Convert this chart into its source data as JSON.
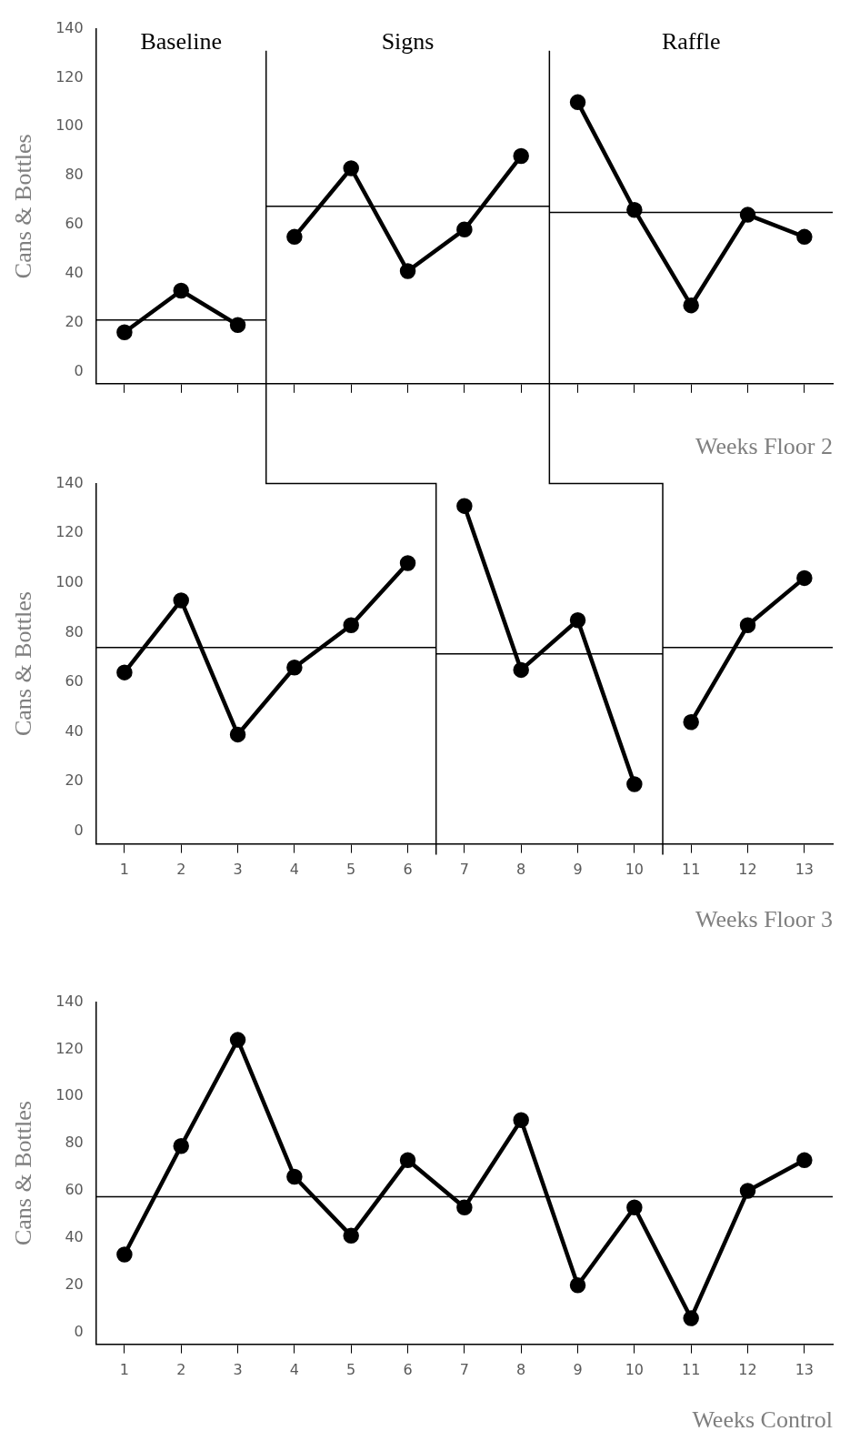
{
  "chart_data": [
    {
      "type": "line",
      "ylabel": "Cans & Bottles",
      "xlabel": "Weeks Floor 2",
      "xlim": [
        0.5,
        13.5
      ],
      "xticks": [
        1,
        2,
        3,
        4,
        5,
        6,
        7,
        8,
        9,
        10,
        11,
        12,
        13
      ],
      "ylim": [
        -5,
        140
      ],
      "yticks": [
        0,
        20,
        40,
        60,
        80,
        100,
        120,
        140
      ],
      "tick_labels": "y",
      "grid": false,
      "legend": false,
      "marker": "circle",
      "line_style": "solid",
      "series": [
        {
          "color": "#000000",
          "x": [
            1,
            2,
            3
          ],
          "values": [
            16,
            33,
            19
          ]
        },
        {
          "color": "#000000",
          "x": [
            4,
            5,
            6,
            7,
            8
          ],
          "values": [
            55,
            83,
            41,
            58,
            88
          ]
        },
        {
          "color": "#000000",
          "x": [
            9,
            10,
            11,
            12,
            13
          ],
          "values": [
            110,
            66,
            27,
            64,
            55
          ]
        },
        {
          "type": "line",
          "marker": "none",
          "color": "#000000",
          "x": [
            0.5,
            3.5
          ],
          "values": [
            21,
            21
          ]
        },
        {
          "type": "line",
          "marker": "none",
          "color": "#000000",
          "x": [
            3.5,
            8.5
          ],
          "values": [
            67.5,
            67.5
          ]
        },
        {
          "type": "line",
          "marker": "none",
          "color": "#000000",
          "x": [
            8.5,
            13.5
          ],
          "values": [
            65,
            65
          ]
        }
      ],
      "ref_lines": [
        {
          "axis": "x",
          "value": 3.5
        },
        {
          "axis": "x",
          "value": 8.5
        }
      ],
      "annotations": [
        "Baseline",
        "Signs",
        "Raffle"
      ]
    },
    {
      "type": "line",
      "ylabel": "Cans & Bottles",
      "xlabel": "Weeks Floor 3",
      "xlim": [
        0.5,
        13.5
      ],
      "xticks": [
        1,
        2,
        3,
        4,
        5,
        6,
        7,
        8,
        9,
        10,
        11,
        12,
        13
      ],
      "ylim": [
        -5,
        140
      ],
      "yticks": [
        0,
        20,
        40,
        60,
        80,
        100,
        120,
        140
      ],
      "grid": false,
      "legend": false,
      "marker": "circle",
      "line_style": "solid",
      "series": [
        {
          "color": "#000000",
          "x": [
            1,
            2,
            3,
            4,
            5,
            6
          ],
          "values": [
            64,
            93,
            39,
            66,
            83,
            108
          ]
        },
        {
          "color": "#000000",
          "x": [
            7,
            8,
            9,
            10
          ],
          "values": [
            131,
            65,
            85,
            19
          ]
        },
        {
          "color": "#000000",
          "x": [
            11,
            12,
            13
          ],
          "values": [
            44,
            83,
            102
          ]
        },
        {
          "type": "line",
          "marker": "none",
          "color": "#000000",
          "x": [
            0.5,
            6.5
          ],
          "values": [
            74,
            74
          ]
        },
        {
          "type": "line",
          "marker": "none",
          "color": "#000000",
          "x": [
            6.5,
            10.5
          ],
          "values": [
            71.5,
            71.5
          ]
        },
        {
          "type": "line",
          "marker": "none",
          "color": "#000000",
          "x": [
            10.5,
            13.5
          ],
          "values": [
            74,
            74
          ]
        }
      ],
      "ref_lines": [
        {
          "axis": "x",
          "value": 6.5
        },
        {
          "axis": "x",
          "value": 10.5
        }
      ]
    },
    {
      "type": "line",
      "ylabel": "Cans & Bottles",
      "xlabel": "Weeks Control",
      "xlim": [
        0.5,
        13.5
      ],
      "xticks": [
        1,
        2,
        3,
        4,
        5,
        6,
        7,
        8,
        9,
        10,
        11,
        12,
        13
      ],
      "ylim": [
        -5,
        140
      ],
      "yticks": [
        0,
        20,
        40,
        60,
        80,
        100,
        120,
        140
      ],
      "grid": false,
      "legend": false,
      "marker": "circle",
      "line_style": "solid",
      "series": [
        {
          "color": "#000000",
          "x": [
            1,
            2,
            3,
            4,
            5,
            6,
            7,
            8,
            9,
            10,
            11,
            12,
            13
          ],
          "values": [
            33,
            79,
            124,
            66,
            41,
            73,
            53,
            90,
            20,
            53,
            6,
            60,
            73
          ]
        },
        {
          "type": "line",
          "marker": "none",
          "color": "#000000",
          "x": [
            0.5,
            13.5
          ],
          "values": [
            57.5,
            57.5
          ]
        }
      ]
    }
  ]
}
